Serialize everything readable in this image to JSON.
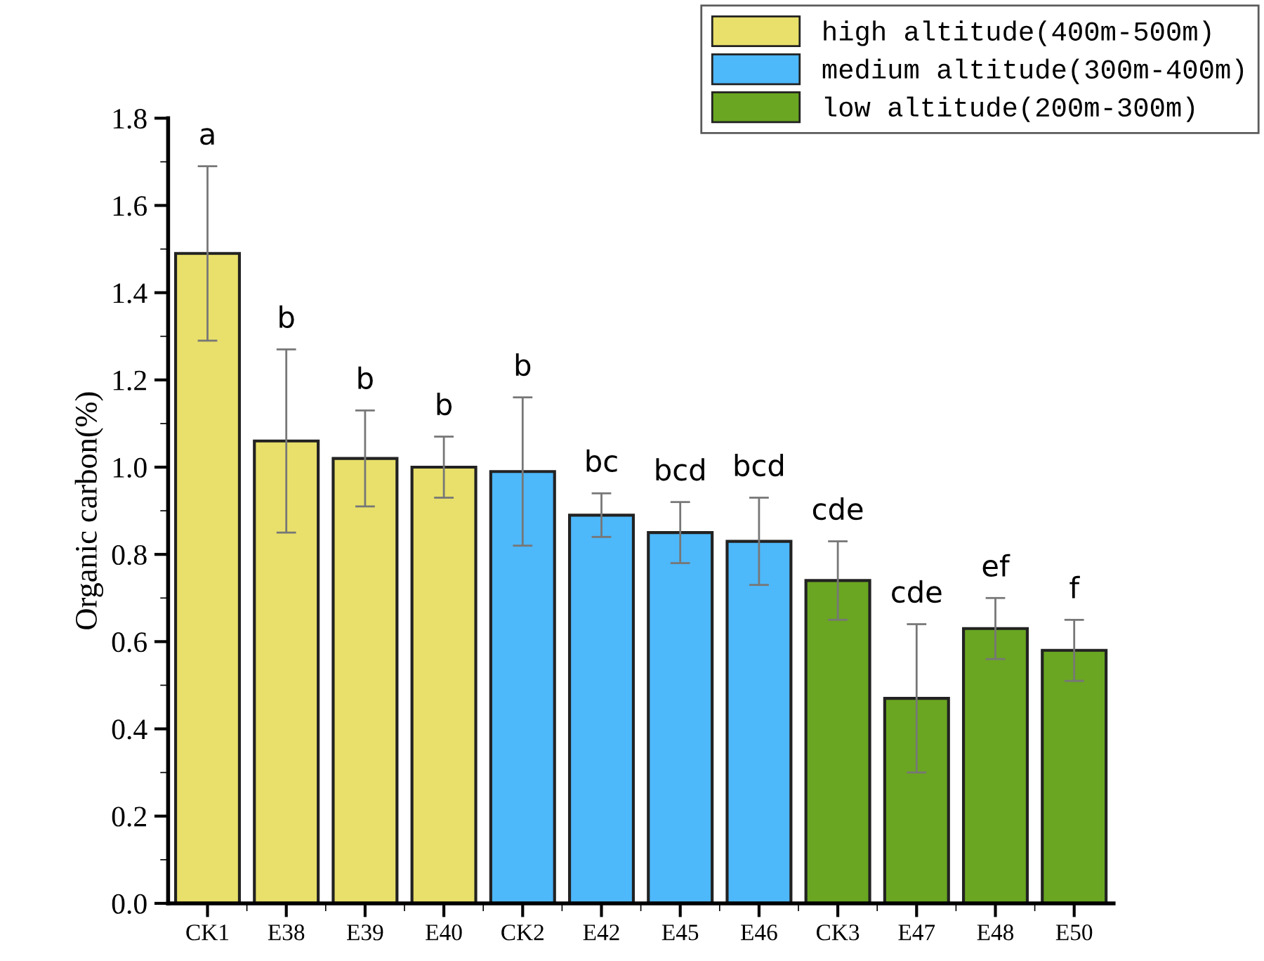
{
  "chart_data": {
    "type": "bar",
    "ylabel": "Organic carbon(%)",
    "categories": [
      "CK1",
      "E38",
      "E39",
      "E40",
      "CK2",
      "E42",
      "E45",
      "E46",
      "CK3",
      "E47",
      "E48",
      "E50"
    ],
    "series": [
      {
        "name": "high altitude(400m-500m)",
        "color": "#e8e06a",
        "values": [
          1.49,
          1.06,
          1.02,
          1.0,
          null,
          null,
          null,
          null,
          null,
          null,
          null,
          null
        ],
        "errors": [
          0.2,
          0.21,
          0.11,
          0.07,
          null,
          null,
          null,
          null,
          null,
          null,
          null,
          null
        ]
      },
      {
        "name": "medium altitude(300m-400m)",
        "color": "#4db8fa",
        "values": [
          null,
          null,
          null,
          null,
          0.99,
          0.89,
          0.85,
          0.83,
          null,
          null,
          null,
          null
        ],
        "errors": [
          null,
          null,
          null,
          null,
          0.17,
          0.05,
          0.07,
          0.1,
          null,
          null,
          null,
          null
        ]
      },
      {
        "name": "low altitude(200m-300m)",
        "color": "#6aa621",
        "values": [
          null,
          null,
          null,
          null,
          null,
          null,
          null,
          null,
          0.74,
          0.47,
          0.63,
          0.58
        ],
        "errors": [
          null,
          null,
          null,
          null,
          null,
          null,
          null,
          null,
          0.09,
          0.17,
          0.07,
          0.07
        ]
      }
    ],
    "annotations": [
      {
        "text": "a",
        "x": "CK1",
        "y": 1.69
      },
      {
        "text": "b",
        "x": "E38",
        "y": 1.27
      },
      {
        "text": "b",
        "x": "E39",
        "y": 1.13
      },
      {
        "text": "b",
        "x": "E40",
        "y": 1.07
      },
      {
        "text": "b",
        "x": "CK2",
        "y": 1.16
      },
      {
        "text": "bc",
        "x": "E42",
        "y": 0.94
      },
      {
        "text": "bcd",
        "x": "E45",
        "y": 0.92
      },
      {
        "text": "bcd",
        "x": "E46",
        "y": 0.93
      },
      {
        "text": "cde",
        "x": "CK3",
        "y": 0.83
      },
      {
        "text": "cde",
        "x": "E47",
        "y": 0.64
      },
      {
        "text": "ef",
        "x": "E48",
        "y": 0.7
      },
      {
        "text": "f",
        "x": "E50",
        "y": 0.65
      }
    ],
    "ylim": [
      0,
      1.8
    ],
    "yticks": [
      {
        "value": 0,
        "label": "0.0"
      },
      {
        "value": 0.2,
        "label": "0.2"
      },
      {
        "value": 0.4,
        "label": "0.4"
      },
      {
        "value": 0.6,
        "label": "0.6"
      },
      {
        "value": 0.8,
        "label": "0.8"
      },
      {
        "value": 1.0,
        "label": "1.0"
      },
      {
        "value": 1.2,
        "label": "1.2"
      },
      {
        "value": 1.4,
        "label": "1.4"
      },
      {
        "value": 1.6,
        "label": "1.6"
      },
      {
        "value": 1.8,
        "label": "1.8"
      }
    ],
    "grid": false,
    "legend": "top right"
  }
}
